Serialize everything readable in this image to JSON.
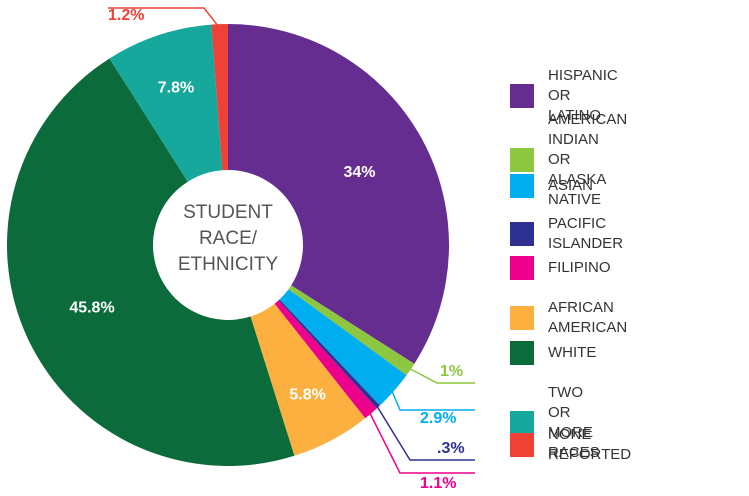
{
  "chart_data": {
    "type": "donut",
    "center_label": "STUDENT\nRACE/\nETHNICITY",
    "categories": [
      "HISPANIC OR LATINO",
      "AMERICAN INDIAN\nOR ALASKA NATIVE",
      "ASIAN",
      "PACIFIC ISLANDER",
      "FILIPINO",
      "AFRICAN AMERICAN",
      "WHITE",
      "TWO OR MORE RACES",
      "NONE REPORTED"
    ],
    "values": [
      34,
      1,
      2.9,
      0.3,
      1.1,
      5.8,
      45.8,
      7.8,
      1.2
    ],
    "value_labels": [
      "34%",
      "1%",
      "2.9%",
      ".3%",
      "1.1%",
      "5.8%",
      "45.8%",
      "7.8%",
      "1.2%"
    ],
    "colors": [
      "#662d91",
      "#8dc63f",
      "#00aeef",
      "#2e3192",
      "#ec008c",
      "#fbb040",
      "#0b6b3a",
      "#16a89c",
      "#ef4136"
    ],
    "legend": "right"
  }
}
